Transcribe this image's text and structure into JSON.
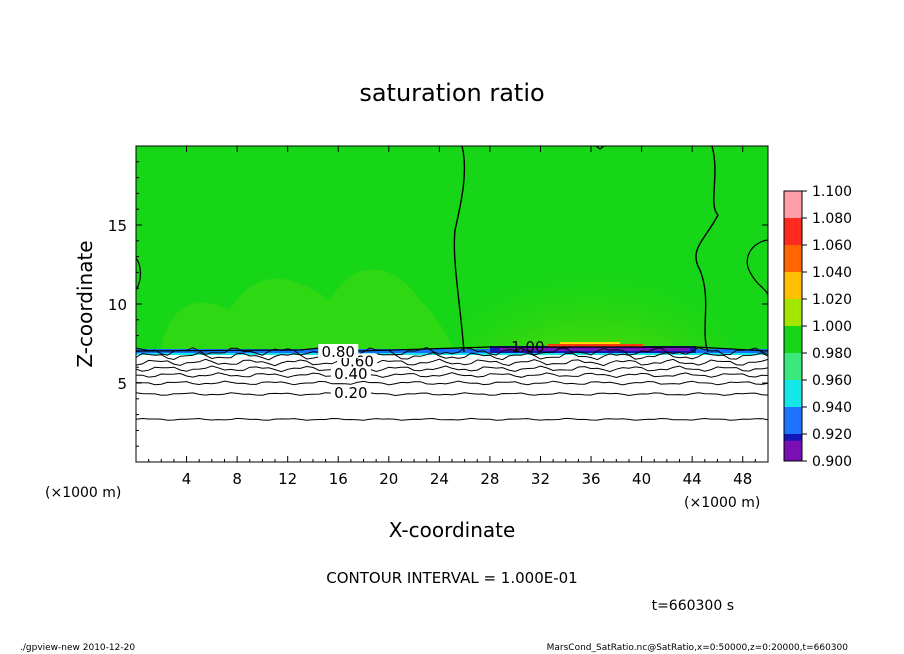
{
  "chart_data": {
    "type": "heatmap",
    "title": "saturation ratio",
    "xlabel": "X-coordinate",
    "ylabel": "Z-coordinate",
    "x_unit": "(×1000 m)",
    "y_unit": "(×1000 m)",
    "xlim": [
      0,
      50
    ],
    "ylim": [
      0,
      20
    ],
    "x_ticks": [
      4,
      8,
      12,
      16,
      20,
      24,
      28,
      32,
      36,
      40,
      44,
      48
    ],
    "y_ticks": [
      5,
      10,
      15
    ],
    "contour_labels": [
      {
        "text": "0.20",
        "x": 17,
        "z": 4.3
      },
      {
        "text": "0.40",
        "x": 17,
        "z": 5.5
      },
      {
        "text": "0.60",
        "x": 17.5,
        "z": 6.3
      },
      {
        "text": "0.80",
        "x": 16,
        "z": 6.9
      },
      {
        "text": "1.00",
        "x": 31,
        "z": 7.2
      }
    ],
    "colorbar": {
      "levels": [
        1.1,
        1.08,
        1.06,
        1.04,
        1.02,
        1.0,
        0.98,
        0.96,
        0.94,
        0.92,
        0.9
      ],
      "labels": [
        "1.100",
        "1.080",
        "1.060",
        "1.040",
        "1.020",
        "1.000",
        "0.980",
        "0.960",
        "0.940",
        "0.920",
        "0.900"
      ],
      "colors": [
        "#ff9ea8",
        "#ff2a20",
        "#ff6600",
        "#ffc000",
        "#a4e600",
        "#17d617",
        "#3ce87c",
        "#15e6e6",
        "#1f73ff",
        "#1616b8",
        "#7a0fb4"
      ]
    },
    "contour_interval_text": "CONTOUR INTERVAL = 1.000E-01",
    "time_text": "t=660300 s",
    "grid": false
  },
  "footer": {
    "left": "./gpview-new  2010-12-20",
    "right": "MarsCond_SatRatio.nc@SatRatio,x=0:50000,z=0:20000,t=660300"
  }
}
